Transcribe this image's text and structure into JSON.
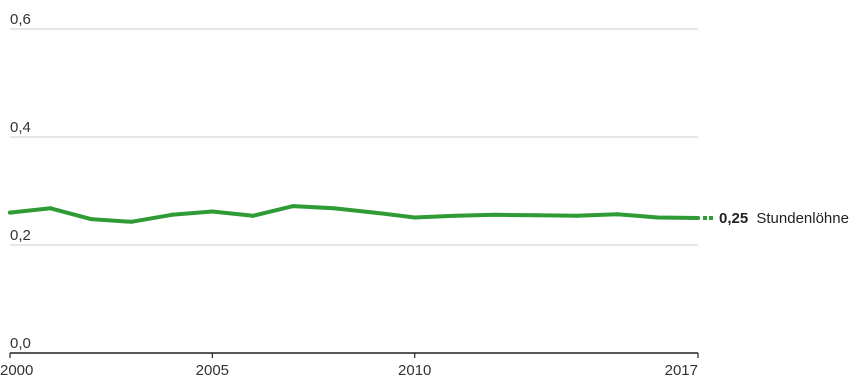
{
  "chart_data": {
    "type": "line",
    "x": [
      2000,
      2001,
      2002,
      2003,
      2004,
      2005,
      2006,
      2007,
      2008,
      2009,
      2010,
      2011,
      2012,
      2013,
      2014,
      2015,
      2016,
      2017
    ],
    "series": [
      {
        "name": "Stundenlöhne",
        "values": [
          0.26,
          0.268,
          0.248,
          0.243,
          0.256,
          0.262,
          0.254,
          0.272,
          0.268,
          0.26,
          0.251,
          0.254,
          0.256,
          0.255,
          0.254,
          0.257,
          0.251,
          0.25
        ]
      }
    ],
    "ylim": [
      0,
      0.6
    ],
    "xlim": [
      2000,
      2017
    ],
    "y_ticks": [
      "0,0",
      "0,2",
      "0,4",
      "0,6"
    ],
    "x_ticks": [
      "2000",
      "2005",
      "2010",
      "2017"
    ],
    "end_label": {
      "value": "0,25",
      "text": "Stundenlöhne"
    },
    "grid": true,
    "colors": {
      "line": "#2e9b35",
      "grid": "#cfcfcf",
      "axis": "#222222"
    }
  }
}
